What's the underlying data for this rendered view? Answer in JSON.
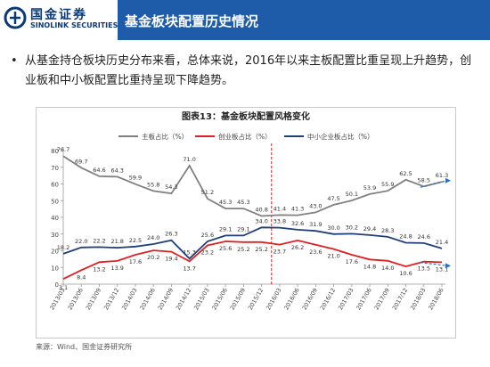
{
  "header": {
    "logo_cn": "国金证券",
    "logo_en": "SINOLINK SECURITIES",
    "page_title": "基金板块配置历史情况"
  },
  "bullet": {
    "dot": "•",
    "text": "从基金持仓板块历史分布来看，总体来说，2016年以来主板配置比重呈现上升趋势，创业板和中小板配置比重持呈现下降趋势。"
  },
  "source": "来源：Wind、国金证券研究所",
  "colors": {
    "main_board": "#808080",
    "chinext": "#e02020",
    "sme": "#1f3f7a",
    "brand": "#1e5ba8",
    "arrow": "#2f6fc0"
  },
  "chart_data": {
    "type": "line",
    "title": "图表13：基金板块配置风格变化",
    "legend_position": "top",
    "ylim": [
      0,
      80
    ],
    "yticks": [
      0,
      10,
      20,
      30,
      40,
      50,
      60,
      70,
      80
    ],
    "grid": false,
    "categories": [
      "2013/03",
      "2013/06",
      "2013/09",
      "2013/12",
      "2014/03",
      "2014/06",
      "2014/09",
      "2014/12",
      "2015/03",
      "2015/06",
      "2015/09",
      "2015/12",
      "2016/03",
      "2016/06",
      "2016/09",
      "2016/12",
      "2017/03",
      "2017/06",
      "2017/09",
      "2017/12",
      "2018/03",
      "2018/06"
    ],
    "series": [
      {
        "name": "主板占比（%）",
        "color_key": "main_board",
        "values": [
          76.7,
          69.7,
          64.6,
          64.3,
          59.9,
          55.8,
          54.3,
          71.0,
          51.2,
          45.3,
          45.3,
          40.8,
          41.4,
          41.3,
          43.0,
          47.5,
          50.1,
          53.9,
          55.9,
          62.5,
          58.5,
          61.3
        ]
      },
      {
        "name": "创业板占比（%）",
        "color_key": "chinext",
        "values": [
          3.1,
          8.4,
          13.2,
          13.9,
          17.6,
          20.2,
          19.4,
          13.7,
          23.2,
          25.6,
          25.2,
          25.2,
          23.7,
          26.2,
          23.6,
          21.0,
          17.6,
          14.8,
          14.0,
          10.6,
          13.5,
          13.1
        ]
      },
      {
        "name": "中小企业板占比（%）",
        "color_key": "sme",
        "values": [
          18.2,
          22.0,
          22.2,
          21.8,
          22.5,
          24.0,
          26.3,
          15.3,
          25.6,
          29.1,
          29.1,
          34.0,
          33.8,
          32.6,
          31.9,
          30.0,
          30.2,
          29.4,
          28.3,
          24.8,
          24.6,
          21.4
        ]
      }
    ],
    "divider_after": "2015/12"
  }
}
